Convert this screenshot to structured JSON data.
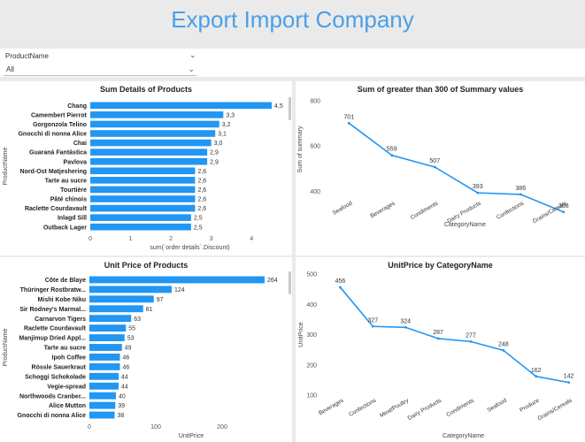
{
  "header": {
    "title": "Export Import Company"
  },
  "slicer": {
    "label": "ProductName",
    "value": "All"
  },
  "colors": {
    "bar": "#2196f3",
    "line": "#2196f3",
    "title": "#4a9fe8"
  },
  "chart_data": [
    {
      "id": "c1",
      "type": "bar",
      "orientation": "horizontal",
      "title": "Sum Details of Products",
      "xlabel": "sum(`order details`.Discount)",
      "ylabel": "ProductName",
      "xlim": [
        0,
        4.5
      ],
      "xticks": [
        0,
        1,
        2,
        3,
        4
      ],
      "categories": [
        "Chang",
        "Camembert Pierrot",
        "Gorgonzola Telino",
        "Gnocchi di nonna Alice",
        "Chai",
        "Guaraná Fantástica",
        "Pavlova",
        "Nord-Ost Matjeshering",
        "Tarte au sucre",
        "Tourtière",
        "Pâté chinois",
        "Raclette Courdavault",
        "Inlagd Sill",
        "Outback Lager"
      ],
      "values": [
        4.5,
        3.3,
        3.2,
        3.1,
        3.0,
        2.9,
        2.9,
        2.6,
        2.6,
        2.6,
        2.6,
        2.6,
        2.5,
        2.5
      ],
      "labels": [
        "4,5",
        "3,3",
        "3,2",
        "3,1",
        "3,0",
        "2,9",
        "2,9",
        "2,6",
        "2,6",
        "2,6",
        "2,6",
        "2,6",
        "2,5",
        "2,5"
      ]
    },
    {
      "id": "c2",
      "type": "line",
      "title": "Sum of greater than 300 of Summary values",
      "xlabel": "CategoryName",
      "ylabel": "Sum of summary",
      "ylim": [
        370,
        800
      ],
      "yticks": [
        400,
        600,
        800
      ],
      "categories": [
        "Seafood",
        "Beverages",
        "Condiments",
        "Dairy Products",
        "Confections",
        "Grains/Cereals"
      ],
      "values": [
        701,
        559,
        507,
        393,
        386,
        308
      ]
    },
    {
      "id": "c3",
      "type": "bar",
      "orientation": "horizontal",
      "title": "Unit Price of Products",
      "xlabel": "UnitPrice",
      "ylabel": "ProductName",
      "xlim": [
        0,
        280
      ],
      "xticks": [
        0,
        100,
        200
      ],
      "categories": [
        "Côte de Blaye",
        "Thüringer Rostbratw...",
        "Mishi Kobe Niku",
        "Sir Rodney's Marmal...",
        "Carnarvon Tigers",
        "Raclette Courdavault",
        "Manjimup Dried Appl...",
        "Tarte au sucre",
        "Ipoh Coffee",
        "Rössle Sauerkraut",
        "Schoggi Schokolade",
        "Vegie-spread",
        "Northwoods Cranber...",
        "Alice Mutton",
        "Gnocchi di nonna Alice"
      ],
      "values": [
        264,
        124,
        97,
        81,
        63,
        55,
        53,
        49,
        46,
        46,
        44,
        44,
        40,
        39,
        38
      ],
      "labels": [
        "264",
        "124",
        "97",
        "81",
        "63",
        "55",
        "53",
        "49",
        "46",
        "46",
        "44",
        "44",
        "40",
        "39",
        "38"
      ]
    },
    {
      "id": "c4",
      "type": "line",
      "title": "UnitPrice by CategoryName",
      "xlabel": "CategoryName",
      "ylabel": "UnitPrice",
      "ylim": [
        100,
        500
      ],
      "yticks": [
        100,
        200,
        300,
        400,
        500
      ],
      "categories": [
        "Beverages",
        "Confections",
        "Meat/Poultry",
        "Dairy Products",
        "Condiments",
        "Seafood",
        "Produce",
        "Grains/Cereals"
      ],
      "values": [
        456,
        327,
        324,
        287,
        277,
        248,
        162,
        142
      ]
    }
  ]
}
